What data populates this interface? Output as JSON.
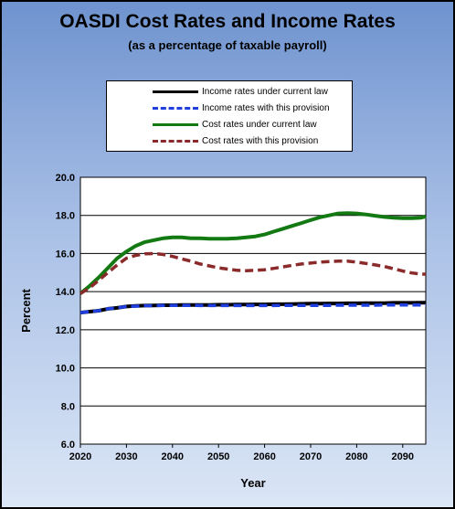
{
  "colors": {
    "income_current": "#000000",
    "income_provision": "#1f3fe0",
    "cost_current": "#137a13",
    "cost_provision": "#8b2a2a"
  },
  "chart_data": {
    "type": "line",
    "title": "OASDI Cost Rates and Income Rates",
    "subtitle": "(as a percentage of taxable payroll)",
    "xlabel": "Year",
    "ylabel": "Percent",
    "xlim": [
      2020,
      2095
    ],
    "ylim": [
      6.0,
      20.0
    ],
    "yticks": [
      "6.0",
      "8.0",
      "10.0",
      "12.0",
      "14.0",
      "16.0",
      "18.0",
      "20.0"
    ],
    "xticks": [
      "2020",
      "2030",
      "2040",
      "2050",
      "2060",
      "2070",
      "2080",
      "2090"
    ],
    "grid": true,
    "legend_position": "top",
    "x": [
      2020,
      2022,
      2024,
      2026,
      2028,
      2030,
      2032,
      2034,
      2036,
      2038,
      2040,
      2042,
      2044,
      2046,
      2048,
      2050,
      2052,
      2054,
      2056,
      2058,
      2060,
      2062,
      2064,
      2066,
      2068,
      2070,
      2072,
      2074,
      2076,
      2078,
      2080,
      2082,
      2084,
      2086,
      2088,
      2090,
      2092,
      2094,
      2095
    ],
    "series": [
      {
        "name": "Income rates under current law",
        "color_key": "income_current",
        "style": "solid",
        "values": [
          12.9,
          12.95,
          13.0,
          13.1,
          13.15,
          13.22,
          13.25,
          13.27,
          13.28,
          13.29,
          13.29,
          13.3,
          13.3,
          13.3,
          13.3,
          13.31,
          13.31,
          13.32,
          13.32,
          13.33,
          13.33,
          13.34,
          13.34,
          13.35,
          13.36,
          13.37,
          13.37,
          13.38,
          13.38,
          13.39,
          13.39,
          13.4,
          13.4,
          13.4,
          13.41,
          13.41,
          13.41,
          13.42,
          13.42
        ]
      },
      {
        "name": "Income rates with this provision",
        "color_key": "income_provision",
        "style": "dashed",
        "values": [
          12.9,
          12.95,
          13.0,
          13.1,
          13.15,
          13.22,
          13.24,
          13.26,
          13.27,
          13.28,
          13.28,
          13.28,
          13.28,
          13.27,
          13.27,
          13.27,
          13.27,
          13.27,
          13.27,
          13.27,
          13.27,
          13.27,
          13.28,
          13.28,
          13.28,
          13.28,
          13.28,
          13.28,
          13.29,
          13.29,
          13.29,
          13.29,
          13.29,
          13.3,
          13.3,
          13.3,
          13.3,
          13.3,
          13.3
        ]
      },
      {
        "name": "Cost rates under current law",
        "color_key": "cost_current",
        "style": "solid",
        "values": [
          13.9,
          14.3,
          14.75,
          15.25,
          15.75,
          16.1,
          16.4,
          16.6,
          16.7,
          16.8,
          16.85,
          16.85,
          16.8,
          16.8,
          16.78,
          16.78,
          16.78,
          16.8,
          16.85,
          16.9,
          17.0,
          17.15,
          17.3,
          17.45,
          17.6,
          17.75,
          17.9,
          18.0,
          18.1,
          18.12,
          18.1,
          18.05,
          17.98,
          17.92,
          17.88,
          17.85,
          17.85,
          17.88,
          17.95
        ]
      },
      {
        "name": "Cost rates with this provision",
        "color_key": "cost_provision",
        "style": "dashed",
        "values": [
          13.9,
          14.2,
          14.6,
          15.0,
          15.4,
          15.75,
          15.9,
          15.98,
          16.0,
          15.95,
          15.85,
          15.72,
          15.6,
          15.45,
          15.35,
          15.25,
          15.18,
          15.12,
          15.1,
          15.12,
          15.15,
          15.22,
          15.3,
          15.38,
          15.45,
          15.5,
          15.55,
          15.58,
          15.6,
          15.6,
          15.55,
          15.48,
          15.4,
          15.32,
          15.2,
          15.08,
          14.98,
          14.92,
          14.92
        ]
      }
    ]
  }
}
